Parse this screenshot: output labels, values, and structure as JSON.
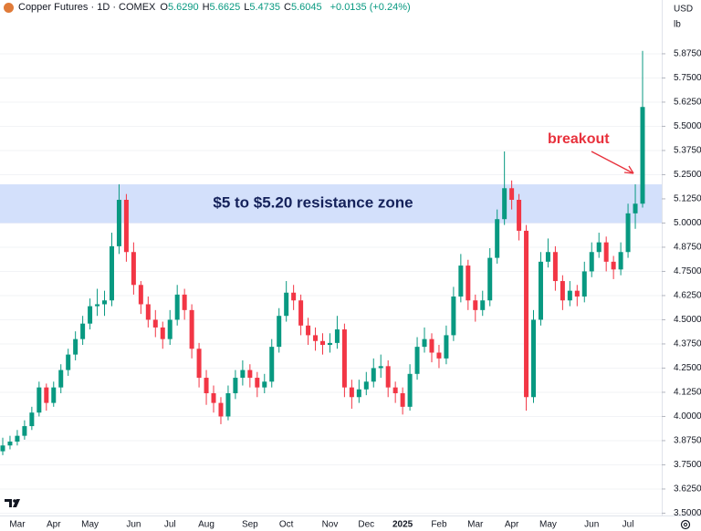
{
  "chart_data": {
    "type": "candlestick",
    "title": "Copper Futures · 1D · COMEX",
    "ohlc_header": [
      {
        "key": "O",
        "value": "5.6290"
      },
      {
        "key": "H",
        "value": "5.6625"
      },
      {
        "key": "L",
        "value": "5.4735"
      },
      {
        "key": "C",
        "value": "5.6045"
      }
    ],
    "change": "+0.0135 (+0.24%)",
    "currency": "USD",
    "unit": "lb",
    "up_color": "#089981",
    "down_color": "#f23645",
    "grid": true,
    "zone": {
      "range": [
        5.0,
        5.2
      ],
      "label": "$5 to $5.20 resistance zone",
      "color": "#d3e0fb"
    },
    "annotation": {
      "text": "breakout",
      "color": "#e8313c"
    },
    "ylim": [
      3.488,
      6.153
    ],
    "yticks": [
      {
        "value": 3.5,
        "label": "3.5000"
      },
      {
        "value": 3.625,
        "label": "3.6250"
      },
      {
        "value": 3.75,
        "label": "3.7500"
      },
      {
        "value": 3.875,
        "label": "3.8750"
      },
      {
        "value": 4.0,
        "label": "4.0000"
      },
      {
        "value": 4.125,
        "label": "4.1250"
      },
      {
        "value": 4.25,
        "label": "4.2500"
      },
      {
        "value": 4.375,
        "label": "4.3750"
      },
      {
        "value": 4.5,
        "label": "4.5000"
      },
      {
        "value": 4.625,
        "label": "4.6250"
      },
      {
        "value": 4.75,
        "label": "4.7500"
      },
      {
        "value": 4.875,
        "label": "4.8750"
      },
      {
        "value": 5.0,
        "label": "5.0000"
      },
      {
        "value": 5.125,
        "label": "5.1250"
      },
      {
        "value": 5.25,
        "label": "5.2500"
      },
      {
        "value": 5.375,
        "label": "5.3750"
      },
      {
        "value": 5.5,
        "label": "5.5000"
      },
      {
        "value": 5.625,
        "label": "5.6250"
      },
      {
        "value": 5.75,
        "label": "5.7500"
      },
      {
        "value": 5.875,
        "label": "5.8750"
      }
    ],
    "categories": [
      null,
      null,
      "Mar",
      null,
      null,
      null,
      null,
      "Apr",
      null,
      null,
      null,
      null,
      "May",
      null,
      null,
      null,
      null,
      null,
      "Jun",
      null,
      null,
      null,
      null,
      "Jul",
      null,
      null,
      null,
      null,
      "Aug",
      null,
      null,
      null,
      null,
      null,
      "Sep",
      null,
      null,
      null,
      null,
      "Oct",
      null,
      null,
      null,
      null,
      null,
      "Nov",
      null,
      null,
      null,
      null,
      "Dec",
      null,
      null,
      null,
      null,
      "2025",
      null,
      null,
      null,
      null,
      "Feb",
      null,
      null,
      null,
      null,
      "Mar",
      null,
      null,
      null,
      null,
      "Apr",
      null,
      null,
      null,
      null,
      "May",
      null,
      null,
      null,
      null,
      null,
      "Jun",
      null,
      null,
      null,
      null,
      "Jul",
      null,
      null
    ],
    "open": [
      3.82,
      3.85,
      3.87,
      3.9,
      3.95,
      4.02,
      4.15,
      4.07,
      4.15,
      4.24,
      4.32,
      4.4,
      4.48,
      4.57,
      4.58,
      4.6,
      4.88,
      5.12,
      4.85,
      4.68,
      4.58,
      4.5,
      4.46,
      4.4,
      4.5,
      4.63,
      4.55,
      4.35,
      4.2,
      4.12,
      4.07,
      4.0,
      4.12,
      4.2,
      4.24,
      4.2,
      4.15,
      4.18,
      4.36,
      4.52,
      4.64,
      4.6,
      4.47,
      4.42,
      4.39,
      4.37,
      4.38,
      4.45,
      4.15,
      4.1,
      4.14,
      4.18,
      4.25,
      4.26,
      4.15,
      4.12,
      4.05,
      4.22,
      4.36,
      4.4,
      4.33,
      4.3,
      4.42,
      4.62,
      4.78,
      4.6,
      4.55,
      4.6,
      4.82,
      5.02,
      5.18,
      5.12,
      4.96,
      4.1,
      4.5,
      4.8,
      4.85,
      4.7,
      4.6,
      4.65,
      4.62,
      4.75,
      4.85,
      4.9,
      4.8,
      4.76,
      4.85,
      5.05,
      5.1
    ],
    "high": [
      3.89,
      3.9,
      3.93,
      3.98,
      4.05,
      4.18,
      4.17,
      4.18,
      4.27,
      4.35,
      4.44,
      4.52,
      4.61,
      4.66,
      4.65,
      4.95,
      5.2,
      5.15,
      4.9,
      4.7,
      4.62,
      4.55,
      4.49,
      4.55,
      4.68,
      4.66,
      4.58,
      4.38,
      4.24,
      4.16,
      4.1,
      4.16,
      4.24,
      4.29,
      4.27,
      4.23,
      4.22,
      4.4,
      4.56,
      4.7,
      4.68,
      4.63,
      4.51,
      4.46,
      4.43,
      4.43,
      4.52,
      4.48,
      4.19,
      4.19,
      4.23,
      4.3,
      4.32,
      4.29,
      4.18,
      4.15,
      4.27,
      4.41,
      4.46,
      4.43,
      4.37,
      4.47,
      4.67,
      4.84,
      4.81,
      4.63,
      4.65,
      4.87,
      5.07,
      5.37,
      5.22,
      5.15,
      4.99,
      4.55,
      4.85,
      4.92,
      4.88,
      4.73,
      4.7,
      4.68,
      4.8,
      4.9,
      4.95,
      4.93,
      4.83,
      4.9,
      5.1,
      5.2,
      5.89
    ],
    "low": [
      3.8,
      3.83,
      3.85,
      3.88,
      3.93,
      4.0,
      4.03,
      4.05,
      4.12,
      4.21,
      4.29,
      4.37,
      4.45,
      4.52,
      4.52,
      4.57,
      4.84,
      4.8,
      4.63,
      4.53,
      4.46,
      4.41,
      4.35,
      4.37,
      4.47,
      4.5,
      4.3,
      4.15,
      4.06,
      4.02,
      3.96,
      3.98,
      4.09,
      4.16,
      4.15,
      4.1,
      4.12,
      4.15,
      4.33,
      4.49,
      4.55,
      4.42,
      4.37,
      4.34,
      4.32,
      4.33,
      4.35,
      4.1,
      4.04,
      4.07,
      4.11,
      4.15,
      4.2,
      4.1,
      4.07,
      4.01,
      4.03,
      4.19,
      4.33,
      4.28,
      4.25,
      4.27,
      4.39,
      4.59,
      4.55,
      4.49,
      4.52,
      4.57,
      4.79,
      4.99,
      5.07,
      4.91,
      4.03,
      4.07,
      4.47,
      4.77,
      4.65,
      4.55,
      4.57,
      4.57,
      4.59,
      4.72,
      4.82,
      4.75,
      4.71,
      4.73,
      4.82,
      4.97,
      5.08
    ],
    "close": [
      3.85,
      3.87,
      3.9,
      3.95,
      4.02,
      4.15,
      4.07,
      4.15,
      4.24,
      4.32,
      4.4,
      4.48,
      4.57,
      4.58,
      4.6,
      4.88,
      5.12,
      4.85,
      4.68,
      4.58,
      4.5,
      4.46,
      4.4,
      4.5,
      4.63,
      4.55,
      4.35,
      4.2,
      4.12,
      4.07,
      4.0,
      4.12,
      4.2,
      4.24,
      4.2,
      4.15,
      4.18,
      4.36,
      4.52,
      4.64,
      4.6,
      4.47,
      4.42,
      4.39,
      4.37,
      4.38,
      4.45,
      4.15,
      4.1,
      4.14,
      4.18,
      4.25,
      4.26,
      4.15,
      4.12,
      4.05,
      4.22,
      4.36,
      4.4,
      4.33,
      4.3,
      4.42,
      4.62,
      4.78,
      4.6,
      4.55,
      4.6,
      4.82,
      5.02,
      5.18,
      5.12,
      4.96,
      4.1,
      4.5,
      4.8,
      4.85,
      4.7,
      4.6,
      4.65,
      4.62,
      4.75,
      4.85,
      4.9,
      4.8,
      4.76,
      4.85,
      5.05,
      5.1,
      5.6
    ]
  }
}
